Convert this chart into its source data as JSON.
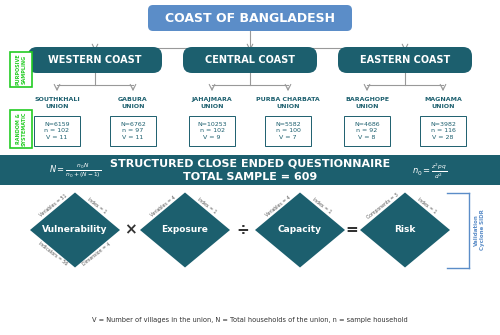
{
  "title_text": "COAST OF BANGLADESH",
  "title_bg": "#5B8DC8",
  "coast_bg": "#1C5F6E",
  "union_label_color": "#1C5F6E",
  "box_border_color": "#1C5F6E",
  "box_text_color": "#1C5F6E",
  "green_rect_color": "#22CC22",
  "coasts": [
    "WESTERN COAST",
    "CENTRAL COAST",
    "EASTERN COAST"
  ],
  "unions": [
    [
      "SOUTHKHALI\nUNION",
      "GABURA\nUNION"
    ],
    [
      "JAHAJMARA\nUNION",
      "PURBA CHARBATA\nUNION"
    ],
    [
      "BARAGHOPE\nUNION",
      "MAGNAMA\nUNION"
    ]
  ],
  "union_data": [
    [
      "N=6159\nn = 102\nV = 11",
      "N=6762\nn = 97\nV = 11"
    ],
    [
      "N=10253\nn = 102\nV = 9",
      "N=5582\nn = 100\nV = 7"
    ],
    [
      "N=4686\nn = 92\nV = 8",
      "N=3982\nn = 116\nV = 28"
    ]
  ],
  "banner_bg": "#1C5F6E",
  "banner_center": "STRUCTURED CLOSE ENDED QUESTIONNAIRE\nTOTAL SAMPLE = 609",
  "diamond_labels": [
    "Vulnerability",
    "Exposure",
    "Capacity",
    "Risk"
  ],
  "operators": [
    "×",
    "÷",
    "="
  ],
  "validation_text": "Validation\nCyclone SIDR",
  "validation_color": "#5B8DC8",
  "footer_text": "V = Number of villages in the union, N = Total households of the union, n = sample household",
  "bg_color": "white",
  "arrow_color": "#999999",
  "line_color": "#999999"
}
